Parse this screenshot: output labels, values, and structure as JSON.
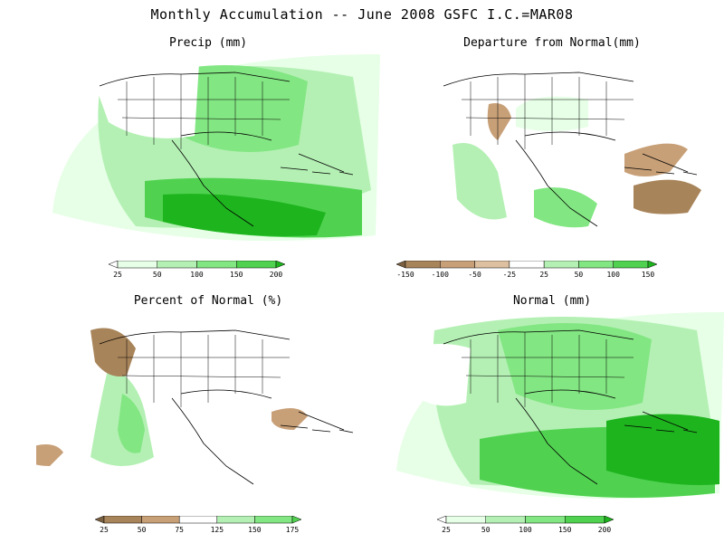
{
  "figure": {
    "title": "Monthly Accumulation -- June 2008 GSFC I.C.=MAR08"
  },
  "colors": {
    "green_1": "#e6ffe6",
    "green_2": "#b4f0b4",
    "green_3": "#82e682",
    "green_4": "#50d250",
    "green_5": "#1eb41e",
    "green_6": "#0a9a0a",
    "tan_1": "#c8a078",
    "tan_2": "#a8845a",
    "tan_3": "#7a6040",
    "map_lines": "#000000"
  },
  "panels": [
    {
      "id": "precip",
      "title": "Precip (mm)",
      "colorbar": {
        "labels": [
          "25",
          "50",
          "100",
          "150",
          "200"
        ],
        "colors": [
          "#ffffff",
          "#e6ffe6",
          "#b4f0b4",
          "#82e682",
          "#50d250",
          "#1eb41e"
        ]
      }
    },
    {
      "id": "departure",
      "title": "Departure from Normal(mm)",
      "colorbar": {
        "labels": [
          "-150",
          "-100",
          "-50",
          "-25",
          "25",
          "50",
          "100",
          "150"
        ],
        "colors": [
          "#7a6040",
          "#a8845a",
          "#c8a078",
          "#dcc0a0",
          "#ffffff",
          "#b4f0b4",
          "#82e682",
          "#50d250",
          "#1eb41e"
        ]
      }
    },
    {
      "id": "percent",
      "title": "Percent of Normal (%)",
      "colorbar": {
        "labels": [
          "25",
          "50",
          "75",
          "125",
          "150",
          "175"
        ],
        "colors": [
          "#7a6040",
          "#a8845a",
          "#c8a078",
          "#ffffff",
          "#b4f0b4",
          "#82e682",
          "#50d250"
        ]
      }
    },
    {
      "id": "normal",
      "title": "Normal (mm)",
      "colorbar": {
        "labels": [
          "25",
          "50",
          "100",
          "150",
          "200"
        ],
        "colors": [
          "#ffffff",
          "#e6ffe6",
          "#b4f0b4",
          "#82e682",
          "#50d250",
          "#1eb41e"
        ]
      }
    }
  ]
}
